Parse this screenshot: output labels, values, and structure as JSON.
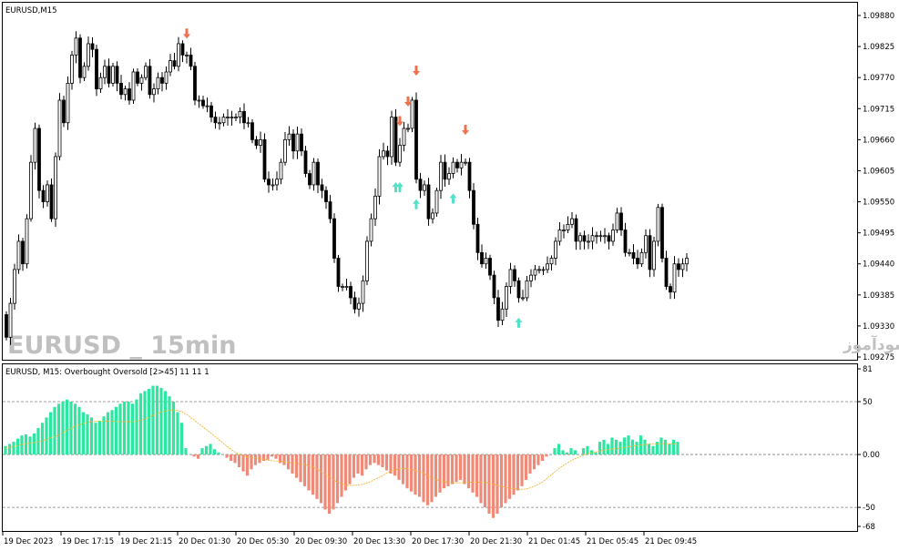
{
  "main_panel": {
    "title": "EURUSD,M15",
    "watermark_left": "EURUSD _ 15min",
    "watermark_right": "انتشار در سایت سودآموز"
  },
  "indicator_panel": {
    "title": "EURUSD, M15: Overbought Oversold [2>45]  11 11 1"
  },
  "colors": {
    "background": "#ffffff",
    "candle": "#000000",
    "arrow_down": "#f0704e",
    "arrow_up": "#55e0c8",
    "hist_positive": "#2ee6a0",
    "hist_negative": "#f08a78",
    "signal_line": "#f2b630"
  },
  "chart_data": [
    {
      "type": "candlestick",
      "symbol": "EURUSD",
      "timeframe": "M15",
      "y_ticks": [
        "1.09880",
        "1.09825",
        "1.09770",
        "1.09715",
        "1.09660",
        "1.09605",
        "1.09550",
        "1.09495",
        "1.09440",
        "1.09385",
        "1.09330",
        "1.09275"
      ],
      "ylim": [
        1.09275,
        1.0988
      ],
      "close_series": [
        1.0935,
        1.0931,
        1.0937,
        1.0943,
        1.0948,
        1.0944,
        1.0952,
        1.0962,
        1.0968,
        1.0957,
        1.0955,
        1.0958,
        1.0952,
        1.0963,
        1.0973,
        1.0969,
        1.0976,
        1.0981,
        1.0984,
        1.0977,
        1.0979,
        1.0983,
        1.0982,
        1.0975,
        1.0977,
        1.0979,
        1.0976,
        1.0979,
        1.0976,
        1.0974,
        1.0975,
        1.0973,
        1.0978,
        1.0976,
        1.0977,
        1.0979,
        1.0974,
        1.0975,
        1.0977,
        1.0976,
        1.0978,
        1.098,
        1.0979,
        1.0983,
        1.0981,
        1.0981,
        1.0979,
        1.0973,
        1.0973,
        1.0972,
        1.0972,
        1.097,
        1.0969,
        1.0969,
        1.097,
        1.097,
        1.097,
        1.097,
        1.0971,
        1.0969,
        1.0969,
        1.0966,
        1.0965,
        1.0966,
        1.0959,
        1.0958,
        1.0958,
        1.0959,
        1.0962,
        1.0966,
        1.0967,
        1.0964,
        1.0967,
        1.0964,
        1.096,
        1.0958,
        1.0962,
        1.0958,
        1.0957,
        1.0955,
        1.0952,
        1.0945,
        1.094,
        1.094,
        1.094,
        1.0938,
        1.0936,
        1.0937,
        1.0941,
        1.0948,
        1.0952,
        1.0956,
        1.0963,
        1.0964,
        1.0963,
        1.097,
        1.0962,
        1.0965,
        1.0968,
        1.0968,
        1.0973,
        1.0959,
        1.0957,
        1.0958,
        1.0952,
        1.0953,
        1.0957,
        1.0962,
        1.0959,
        1.096,
        1.0962,
        1.0961,
        1.0962,
        1.0962,
        1.0957,
        1.0951,
        1.0946,
        1.0944,
        1.0945,
        1.0942,
        1.0938,
        1.0934,
        1.0936,
        1.094,
        1.0943,
        1.0941,
        1.0938,
        1.0938,
        1.0941,
        1.0942,
        1.0943,
        1.0943,
        1.0943,
        1.0944,
        1.0945,
        1.0948,
        1.095,
        1.095,
        1.0951,
        1.0952,
        1.0948,
        1.0949,
        1.0948,
        1.0948,
        1.0949,
        1.0949,
        1.0949,
        1.0949,
        1.0948,
        1.095,
        1.0953,
        1.095,
        1.0946,
        1.0946,
        1.0945,
        1.0944,
        1.0946,
        1.0949,
        1.0943,
        1.0948,
        1.0954,
        1.0945,
        1.094,
        1.0939,
        1.0944,
        1.0943,
        1.0944,
        1.0945
      ]
    },
    {
      "type": "histogram",
      "name": "Overbought Oversold [2>45]",
      "y_ticks": [
        "81",
        "50",
        "0.00",
        "-50",
        "-68"
      ],
      "ylim": [
        -68,
        81
      ],
      "levels": [
        50,
        0,
        -50
      ],
      "x_ticks": [
        "19 Dec 2023",
        "19 Dec 17:15",
        "19 Dec 21:15",
        "20 Dec 01:30",
        "20 Dec 05:30",
        "20 Dec 09:30",
        "20 Dec 13:30",
        "20 Dec 17:30",
        "20 Dec 21:30",
        "21 Dec 01:45",
        "21 Dec 05:45",
        "21 Dec 09:45"
      ],
      "values": [
        8,
        10,
        12,
        15,
        18,
        19,
        17,
        20,
        25,
        30,
        35,
        40,
        45,
        48,
        50,
        52,
        50,
        48,
        45,
        40,
        38,
        35,
        30,
        32,
        36,
        40,
        42,
        45,
        48,
        50,
        50,
        48,
        52,
        58,
        60,
        62,
        65,
        65,
        63,
        60,
        55,
        50,
        40,
        30,
        6,
        0,
        -2,
        -4,
        6,
        8,
        10,
        5,
        2,
        0,
        -3,
        -6,
        -8,
        -12,
        -16,
        -20,
        -14,
        -10,
        -8,
        -6,
        -5,
        -2,
        -4,
        -8,
        -10,
        -14,
        -18,
        -22,
        -26,
        -30,
        -34,
        -38,
        -42,
        -46,
        -52,
        -56,
        -52,
        -46,
        -40,
        -34,
        -28,
        -22,
        -18,
        -20,
        -14,
        -10,
        -8,
        -10,
        -12,
        -15,
        -18,
        -20,
        -24,
        -28,
        -32,
        -35,
        -38,
        -40,
        -45,
        -48,
        -45,
        -40,
        -36,
        -32,
        -30,
        -28,
        -26,
        -24,
        -28,
        -32,
        -36,
        -40,
        -46,
        -50,
        -56,
        -60,
        -56,
        -50,
        -46,
        -42,
        -38,
        -34,
        -30,
        -24,
        -18,
        -14,
        -10,
        -6,
        -2,
        0,
        6,
        10,
        4,
        2,
        6,
        4,
        0,
        6,
        8,
        4,
        2,
        12,
        14,
        10,
        16,
        14,
        12,
        16,
        18,
        14,
        12,
        18,
        14,
        10,
        8,
        12,
        16,
        14,
        10,
        14,
        12
      ]
    }
  ]
}
